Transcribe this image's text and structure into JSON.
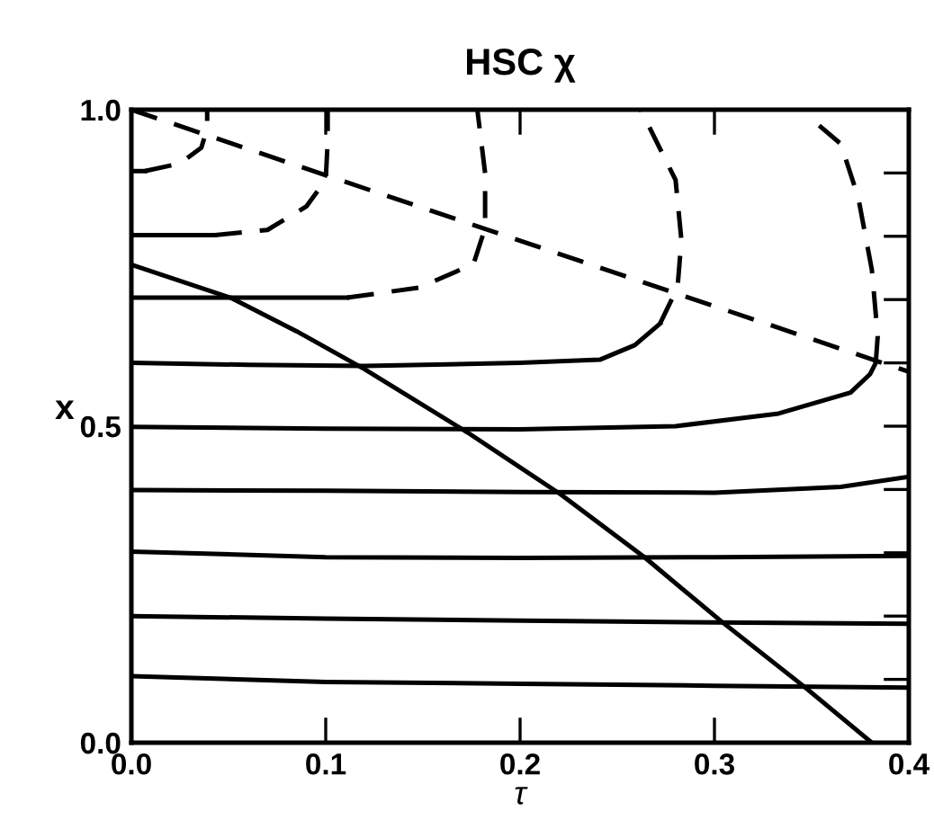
{
  "chart_data": {
    "type": "line",
    "title": "HSC χ",
    "xlabel": "τ",
    "ylabel": "x",
    "xlim": [
      0.0,
      0.4
    ],
    "ylim": [
      0.0,
      1.0
    ],
    "xticks": [
      {
        "value": 0.0,
        "label": "0.0"
      },
      0.1,
      0.2,
      0.3,
      0.4
    ],
    "yticks": [
      {
        "value": 0.0,
        "label": "0.0"
      },
      {
        "value": 0.1,
        "label": null
      },
      {
        "value": 0.2,
        "label": null
      },
      {
        "value": 0.3,
        "label": null
      },
      {
        "value": 0.4,
        "label": null
      },
      0.5,
      {
        "value": 0.6,
        "label": null
      },
      {
        "value": 0.7,
        "label": null
      },
      {
        "value": 0.8,
        "label": null
      },
      {
        "value": 0.9,
        "label": null
      },
      {
        "value": 1.0,
        "label": "1.0"
      }
    ],
    "grid": false,
    "legend": false,
    "marker": "none",
    "series": [
      {
        "color": "#000000",
        "line_style": "solid",
        "x": [
          0.0,
          0.007
        ],
        "values": [
          0.903,
          0.903
        ]
      },
      {
        "color": "#000000",
        "line_style": "dashed",
        "x": [
          0.007,
          0.025,
          0.036,
          0.039,
          0.039
        ],
        "values": [
          0.903,
          0.915,
          0.94,
          0.97,
          1.0
        ]
      },
      {
        "color": "#000000",
        "line_style": "solid",
        "x": [
          0.0,
          0.043
        ],
        "values": [
          0.802,
          0.802
        ]
      },
      {
        "color": "#000000",
        "line_style": "dashed",
        "x": [
          0.043,
          0.07,
          0.09,
          0.1,
          0.101,
          0.101
        ],
        "values": [
          0.802,
          0.81,
          0.847,
          0.889,
          0.95,
          1.0
        ]
      },
      {
        "color": "#000000",
        "line_style": "solid",
        "x": [
          0.0,
          0.111
        ],
        "values": [
          0.703,
          0.703
        ]
      },
      {
        "color": "#000000",
        "line_style": "dashed",
        "x": [
          0.111,
          0.148,
          0.176,
          0.182,
          0.182,
          0.178
        ],
        "values": [
          0.703,
          0.719,
          0.756,
          0.813,
          0.9,
          1.0
        ]
      },
      {
        "color": "#000000",
        "line_style": "solid",
        "x": [
          0.0,
          0.06,
          0.12,
          0.2,
          0.241,
          0.259,
          0.272
        ],
        "values": [
          0.6,
          0.597,
          0.595,
          0.6,
          0.605,
          0.628,
          0.662
        ]
      },
      {
        "color": "#000000",
        "line_style": "dashed",
        "x": [
          0.272,
          0.281,
          0.283,
          0.28,
          0.263,
          0.262
        ],
        "values": [
          0.662,
          0.719,
          0.794,
          0.889,
          0.994,
          1.0
        ]
      },
      {
        "color": "#000000",
        "line_style": "solid",
        "x": [
          0.0,
          0.1,
          0.2,
          0.28,
          0.333,
          0.37,
          0.38,
          0.383
        ],
        "values": [
          0.499,
          0.496,
          0.495,
          0.5,
          0.52,
          0.553,
          0.582,
          0.6
        ]
      },
      {
        "color": "#000000",
        "line_style": "dashed",
        "x": [
          0.383,
          0.384,
          0.381,
          0.374,
          0.365,
          0.352
        ],
        "values": [
          0.6,
          0.642,
          0.747,
          0.861,
          0.946,
          0.98
        ]
      },
      {
        "color": "#000000",
        "line_style": "solid",
        "x": [
          0.0,
          0.1,
          0.2,
          0.3,
          0.365,
          0.4
        ],
        "values": [
          0.399,
          0.398,
          0.396,
          0.395,
          0.404,
          0.42
        ]
      },
      {
        "color": "#000000",
        "line_style": "solid",
        "x": [
          0.0,
          0.1,
          0.2,
          0.3,
          0.4
        ],
        "values": [
          0.302,
          0.293,
          0.292,
          0.293,
          0.295
        ]
      },
      {
        "color": "#000000",
        "line_style": "solid",
        "x": [
          0.0,
          0.1,
          0.2,
          0.3,
          0.4
        ],
        "values": [
          0.2,
          0.196,
          0.193,
          0.19,
          0.188
        ]
      },
      {
        "color": "#000000",
        "line_style": "solid",
        "x": [
          0.0,
          0.1,
          0.2,
          0.3,
          0.4
        ],
        "values": [
          0.105,
          0.096,
          0.093,
          0.09,
          0.087
        ]
      },
      {
        "color": "#000000",
        "line_style": "dashed",
        "x": [
          0.0,
          0.4
        ],
        "values": [
          1.0,
          0.586
        ]
      },
      {
        "color": "#000000",
        "line_style": "solid",
        "x": [
          0.0,
          0.051,
          0.085,
          0.12,
          0.173,
          0.221,
          0.264,
          0.303,
          0.346,
          0.381
        ],
        "values": [
          0.755,
          0.703,
          0.65,
          0.59,
          0.49,
          0.392,
          0.293,
          0.193,
          0.089,
          0.0
        ]
      }
    ]
  }
}
